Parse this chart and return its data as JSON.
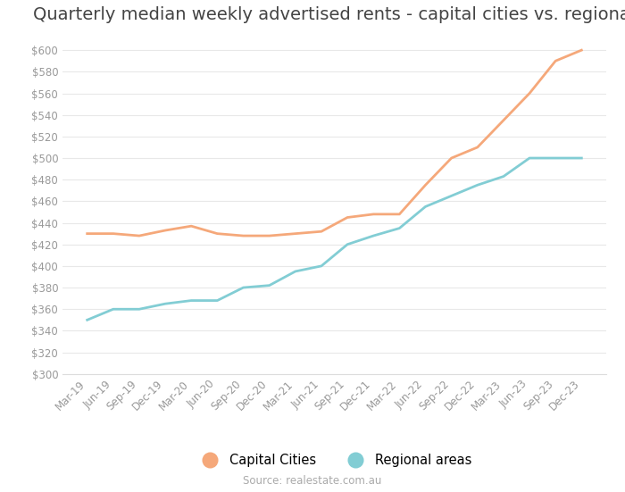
{
  "title": "Quarterly median weekly advertised rents - capital cities vs. regional",
  "source": "Source: realestate.com.au",
  "x_labels": [
    "Mar-19",
    "Jun-19",
    "Sep-19",
    "Dec-19",
    "Mar-20",
    "Jun-20",
    "Sep-20",
    "Dec-20",
    "Mar-21",
    "Jun-21",
    "Sep-21",
    "Dec-21",
    "Mar-22",
    "Jun-22",
    "Sep-22",
    "Dec-22",
    "Mar-23",
    "Jun-23",
    "Sep-23",
    "Dec-23"
  ],
  "capital_cities": [
    430,
    430,
    428,
    433,
    437,
    430,
    428,
    428,
    430,
    432,
    445,
    448,
    448,
    475,
    500,
    510,
    535,
    560,
    590,
    600
  ],
  "regional_areas": [
    350,
    360,
    360,
    365,
    368,
    368,
    380,
    382,
    395,
    400,
    420,
    428,
    435,
    455,
    465,
    475,
    483,
    500,
    500,
    500
  ],
  "capital_color": "#F5A87A",
  "regional_color": "#82CDD4",
  "ylim": [
    300,
    610
  ],
  "yticks": [
    300,
    320,
    340,
    360,
    380,
    400,
    420,
    440,
    460,
    480,
    500,
    520,
    540,
    560,
    580,
    600
  ],
  "line_width": 2.0,
  "background_color": "#FFFFFF",
  "title_fontsize": 14,
  "tick_fontsize": 8.5,
  "legend_fontsize": 10.5,
  "source_fontsize": 8.5
}
